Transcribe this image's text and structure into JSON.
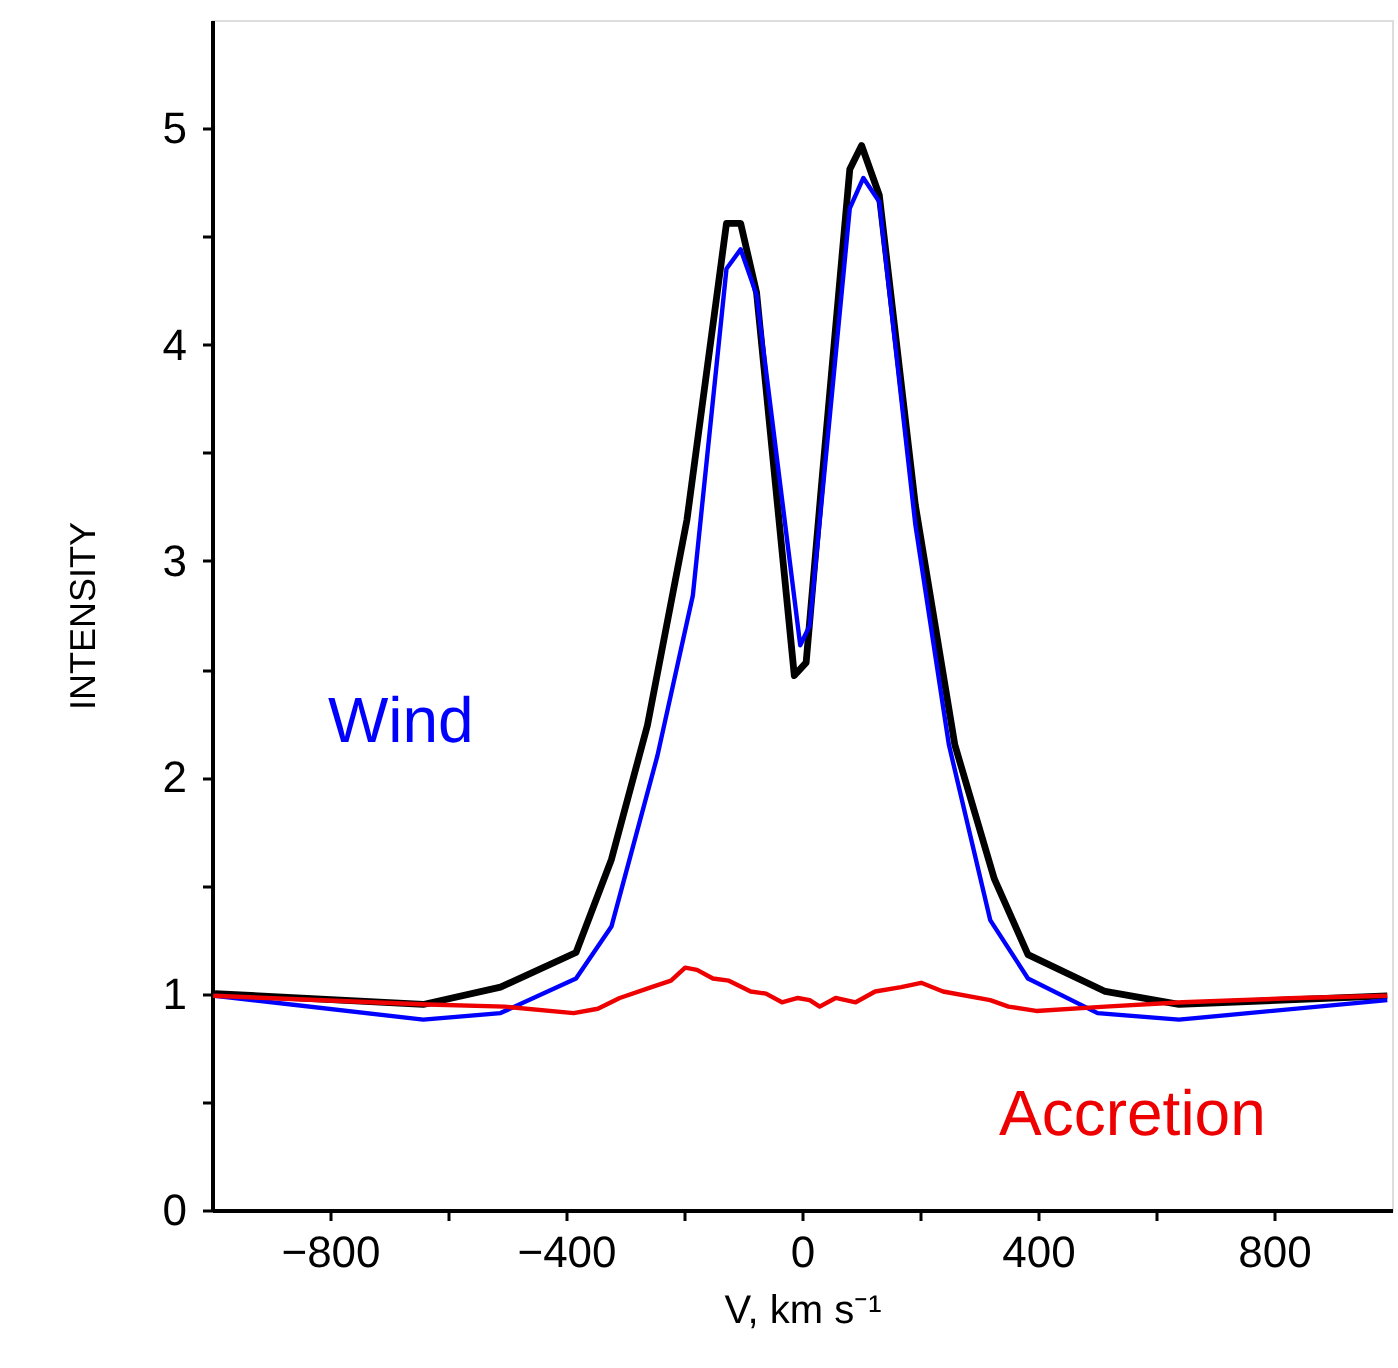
{
  "chart_data": {
    "type": "line",
    "xlabel": "V, km s⁻¹",
    "ylabel": "INTENSITY",
    "xlim": [
      -1000,
      1000
    ],
    "ylim": [
      0,
      5.5
    ],
    "xticks": [
      -800,
      {
        "value": -600,
        "label": null
      },
      -400,
      {
        "value": -200,
        "label": null
      },
      0,
      {
        "value": 200,
        "label": null
      },
      400,
      {
        "value": 600,
        "label": null
      },
      800
    ],
    "yticks": [
      0,
      {
        "value": 0.5,
        "label": null
      },
      1,
      {
        "value": 1.5,
        "label": null
      },
      2,
      {
        "value": 2.5,
        "label": null
      },
      3,
      {
        "value": 3.5,
        "label": null
      },
      4,
      {
        "value": 4.5,
        "label": null
      },
      5
    ],
    "grid": false,
    "marker": "none",
    "line_style": "solid",
    "series": [
      {
        "color": "#000000",
        "x": [
          -995,
          -642,
          -511,
          -383,
          -323,
          -262,
          -195,
          -128,
          -104,
          -77,
          -13,
          7,
          34,
          81,
          101,
          131,
          192,
          259,
          326,
          383,
          514,
          639,
          992
        ],
        "values": [
          1.0,
          0.95,
          1.03,
          1.19,
          1.62,
          2.24,
          3.19,
          4.56,
          4.56,
          4.24,
          2.47,
          2.53,
          3.38,
          4.81,
          4.92,
          4.69,
          3.26,
          2.15,
          1.53,
          1.18,
          1.01,
          0.95,
          0.99
        ]
      },
      {
        "name": "Wind",
        "color": "#0000ff",
        "x": [
          -995,
          -642,
          -511,
          -383,
          -323,
          -245,
          -185,
          -128,
          -104,
          -77,
          -3,
          13,
          81,
          104,
          131,
          192,
          249,
          319,
          383,
          501,
          639,
          992
        ],
        "values": [
          0.99,
          0.88,
          0.91,
          1.07,
          1.31,
          2.1,
          2.84,
          4.35,
          4.44,
          4.23,
          2.61,
          2.7,
          4.63,
          4.77,
          4.66,
          3.17,
          2.15,
          1.34,
          1.07,
          0.91,
          0.88,
          0.97
        ]
      },
      {
        "name": "Accretion",
        "color": "#ee0000",
        "x": [
          -998,
          -635,
          -504,
          -387,
          -346,
          -309,
          -255,
          -222,
          -198,
          -178,
          -151,
          -124,
          -87,
          -61,
          -34,
          -7,
          13,
          30,
          57,
          91,
          124,
          168,
          202,
          239,
          319,
          350,
          397,
          514,
          645,
          840,
          992
        ],
        "values": [
          0.99,
          0.95,
          0.94,
          0.91,
          0.93,
          0.98,
          1.03,
          1.06,
          1.12,
          1.11,
          1.07,
          1.06,
          1.01,
          1.0,
          0.96,
          0.98,
          0.97,
          0.94,
          0.98,
          0.96,
          1.01,
          1.03,
          1.05,
          1.01,
          0.97,
          0.94,
          0.92,
          0.94,
          0.96,
          0.98,
          0.99
        ]
      }
    ]
  }
}
